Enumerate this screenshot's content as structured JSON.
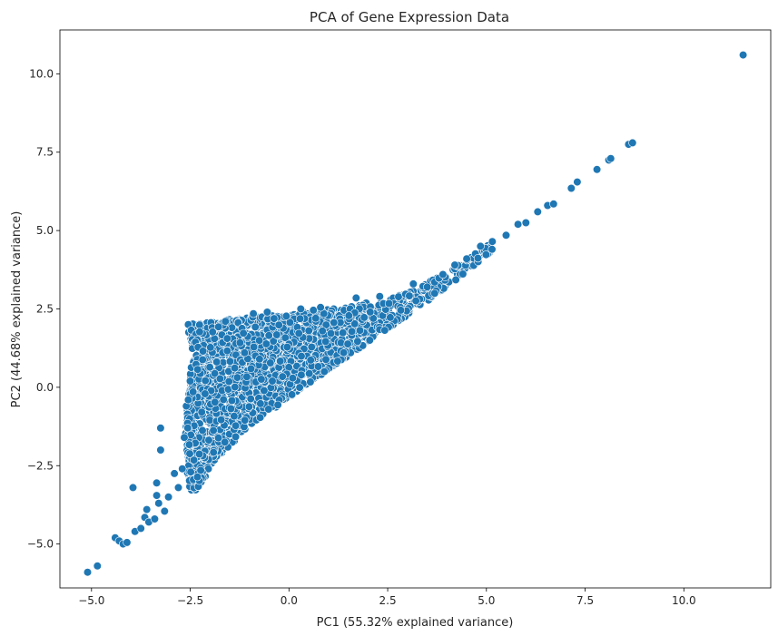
{
  "chart_data": {
    "type": "scatter",
    "title": "PCA of Gene Expression Data",
    "xlabel": "PC1 (55.32% explained variance)",
    "ylabel": "PC2 (44.68% explained variance)",
    "xlim": [
      -5.8,
      12.2
    ],
    "ylim": [
      -6.4,
      11.4
    ],
    "xticks": [
      -5.0,
      -2.5,
      0.0,
      2.5,
      5.0,
      7.5,
      10.0
    ],
    "xtick_labels": [
      "−5.0",
      "−2.5",
      "0.0",
      "2.5",
      "5.0",
      "7.5",
      "10.0"
    ],
    "yticks": [
      -5.0,
      -2.5,
      0.0,
      2.5,
      5.0,
      7.5,
      10.0
    ],
    "ytick_labels": [
      "−5.0",
      "−2.5",
      "0.0",
      "2.5",
      "5.0",
      "7.5",
      "10.0"
    ],
    "grid": false,
    "legend": "none",
    "marker_color": "#1f77b4",
    "marker_edge_color": "#ffffff",
    "points": [
      [
        -5.1,
        -5.9
      ],
      [
        -4.85,
        -5.7
      ],
      [
        -4.4,
        -4.8
      ],
      [
        -4.3,
        -4.9
      ],
      [
        -4.2,
        -5.0
      ],
      [
        -4.1,
        -4.95
      ],
      [
        -3.95,
        -3.2
      ],
      [
        -3.9,
        -4.6
      ],
      [
        -3.75,
        -4.5
      ],
      [
        -3.65,
        -4.15
      ],
      [
        -3.6,
        -3.9
      ],
      [
        -3.55,
        -4.3
      ],
      [
        -3.4,
        -4.2
      ],
      [
        -3.35,
        -3.05
      ],
      [
        -3.35,
        -3.45
      ],
      [
        -3.3,
        -3.7
      ],
      [
        -3.25,
        -1.3
      ],
      [
        -3.25,
        -2.0
      ],
      [
        -3.15,
        -3.95
      ],
      [
        -3.05,
        -3.5
      ],
      [
        -2.9,
        -2.75
      ],
      [
        -2.8,
        -3.2
      ],
      [
        -2.7,
        -2.6
      ],
      [
        -2.65,
        -1.6
      ],
      [
        -2.6,
        -0.6
      ],
      [
        -2.55,
        -0.4
      ],
      [
        -2.5,
        0.2
      ],
      [
        -0.9,
        2.35
      ],
      [
        -0.55,
        2.4
      ],
      [
        0.3,
        2.5
      ],
      [
        0.8,
        2.55
      ],
      [
        1.7,
        2.85
      ],
      [
        2.3,
        2.9
      ],
      [
        3.15,
        3.3
      ],
      [
        3.5,
        3.2
      ],
      [
        3.9,
        3.6
      ],
      [
        4.2,
        3.9
      ],
      [
        4.5,
        4.1
      ],
      [
        4.85,
        4.5
      ],
      [
        5.15,
        4.65
      ],
      [
        5.5,
        4.85
      ],
      [
        5.8,
        5.2
      ],
      [
        6.0,
        5.25
      ],
      [
        6.3,
        5.6
      ],
      [
        6.55,
        5.8
      ],
      [
        6.7,
        5.85
      ],
      [
        7.15,
        6.35
      ],
      [
        7.3,
        6.55
      ],
      [
        7.8,
        6.95
      ],
      [
        8.1,
        7.25
      ],
      [
        8.15,
        7.3
      ],
      [
        8.6,
        7.75
      ],
      [
        8.7,
        7.8
      ],
      [
        11.5,
        10.6
      ]
    ],
    "cloud": {
      "note_count": 6000,
      "polygon": [
        [
          -2.6,
          2.0
        ],
        [
          -1.6,
          2.15
        ],
        [
          -0.5,
          2.3
        ],
        [
          0.5,
          2.45
        ],
        [
          1.5,
          2.6
        ],
        [
          2.5,
          2.8
        ],
        [
          3.1,
          3.1
        ],
        [
          3.6,
          3.4
        ],
        [
          4.1,
          3.75
        ],
        [
          4.6,
          4.15
        ],
        [
          5.1,
          4.6
        ],
        [
          5.3,
          4.5
        ],
        [
          4.6,
          3.8
        ],
        [
          4.0,
          3.2
        ],
        [
          3.0,
          2.3
        ],
        [
          2.0,
          1.45
        ],
        [
          1.0,
          0.55
        ],
        [
          0.0,
          -0.35
        ],
        [
          -1.0,
          -1.2
        ],
        [
          -2.0,
          -2.55
        ],
        [
          -2.3,
          -3.3
        ],
        [
          -2.55,
          -3.3
        ],
        [
          -2.65,
          -1.5
        ],
        [
          -2.45,
          1.0
        ],
        [
          -2.5,
          1.6
        ]
      ]
    }
  }
}
